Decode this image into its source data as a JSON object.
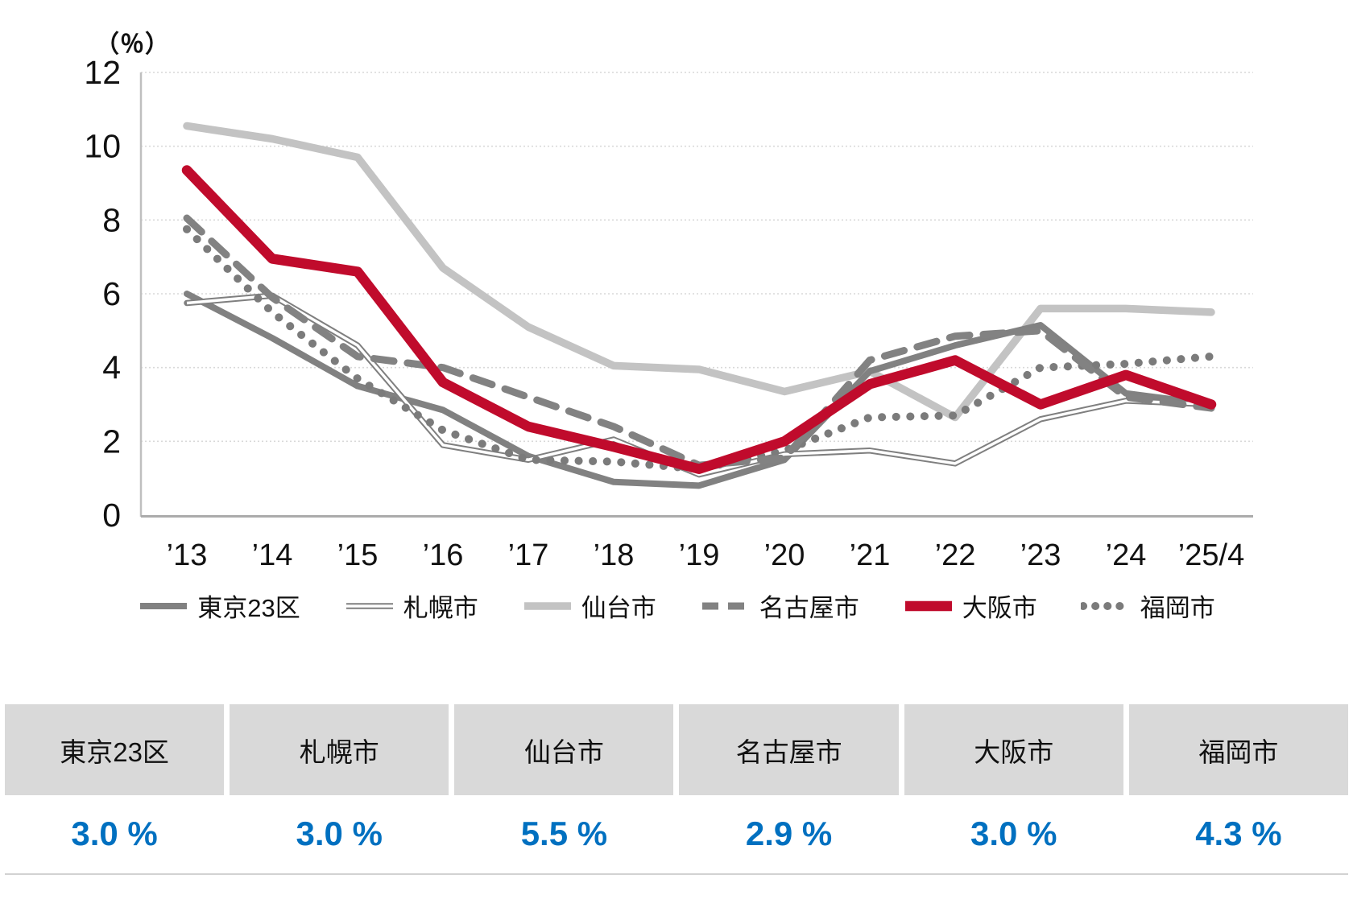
{
  "chart": {
    "unit_label": "（％）",
    "y_ticks": [
      "12",
      "10",
      "8",
      "6",
      "4",
      "2",
      "0"
    ]
  },
  "chart_data": {
    "type": "line",
    "title": "",
    "ylabel": "（％）",
    "ylim": [
      0,
      12
    ],
    "grid": true,
    "legend_position": "bottom",
    "categories": [
      "’13",
      "’14",
      "’15",
      "’16",
      "’17",
      "’18",
      "’19",
      "’20",
      "’21",
      "’22",
      "’23",
      "’24",
      "’25/4"
    ],
    "series": [
      {
        "name": "東京23区",
        "color": "#818181",
        "style": "solid",
        "width": 8,
        "values": [
          6.0,
          4.8,
          3.5,
          2.85,
          1.6,
          0.9,
          0.8,
          1.5,
          3.9,
          4.6,
          5.15,
          3.3,
          3.0
        ]
      },
      {
        "name": "札幌市",
        "color": "#7f7f7f",
        "style": "double",
        "width": 7.5,
        "values": [
          5.75,
          5.95,
          4.6,
          1.9,
          1.5,
          2.05,
          1.1,
          1.65,
          1.75,
          1.4,
          2.6,
          3.1,
          3.0
        ]
      },
      {
        "name": "仙台市",
        "color": "#c3c3c3",
        "style": "solid",
        "width": 9.5,
        "values": [
          10.55,
          10.2,
          9.7,
          6.7,
          5.1,
          4.05,
          3.95,
          3.35,
          3.9,
          2.65,
          5.6,
          5.6,
          5.5
        ]
      },
      {
        "name": "名古屋市",
        "color": "#828282",
        "style": "dashed",
        "width": 9,
        "values": [
          8.05,
          5.9,
          4.3,
          4.0,
          3.2,
          2.4,
          1.35,
          1.55,
          4.2,
          4.85,
          5.0,
          3.2,
          2.9
        ]
      },
      {
        "name": "大阪市",
        "color": "#c00b2c",
        "style": "solid",
        "width": 12.5,
        "values": [
          9.35,
          6.95,
          6.6,
          3.6,
          2.4,
          1.85,
          1.25,
          2.0,
          3.55,
          4.2,
          3.0,
          3.8,
          3.0
        ]
      },
      {
        "name": "福岡市",
        "color": "#7b7b7b",
        "style": "dotted",
        "width": 10,
        "values": [
          7.75,
          5.5,
          3.7,
          2.3,
          1.5,
          1.45,
          1.25,
          1.75,
          2.65,
          2.7,
          4.0,
          4.1,
          4.3
        ]
      }
    ]
  },
  "table": {
    "columns": [
      {
        "label": "東京23区",
        "value": "3.0 %"
      },
      {
        "label": "札幌市",
        "value": "3.0 %"
      },
      {
        "label": "仙台市",
        "value": "5.5 %"
      },
      {
        "label": "名古屋市",
        "value": "2.9 %"
      },
      {
        "label": "大阪市",
        "value": "3.0 %"
      },
      {
        "label": "福岡市",
        "value": "4.3 %"
      }
    ],
    "value_color": "#0070c0"
  }
}
